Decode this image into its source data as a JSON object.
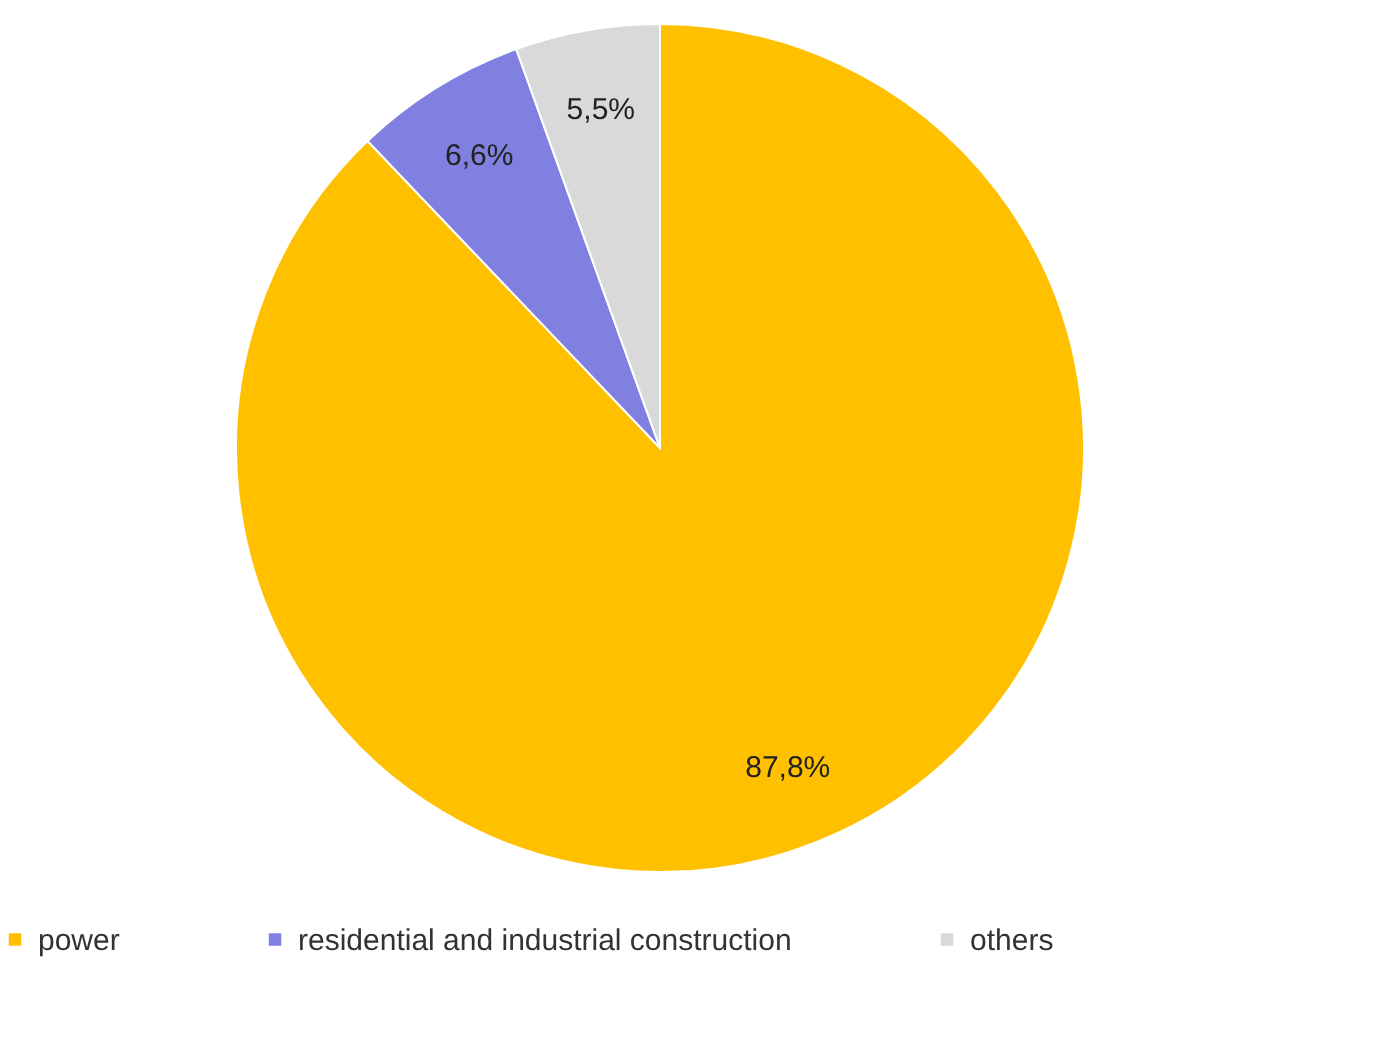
{
  "chart_data": {
    "type": "pie",
    "categories": [
      "power",
      "residential and industrial construction",
      "others"
    ],
    "values": [
      87.8,
      6.6,
      5.5
    ],
    "value_labels": [
      "87,8%",
      "6,6%",
      "5,5%"
    ],
    "colors": [
      "#ffc000",
      "#8080e0",
      "#d9d9d9"
    ],
    "legend": "bottom"
  }
}
